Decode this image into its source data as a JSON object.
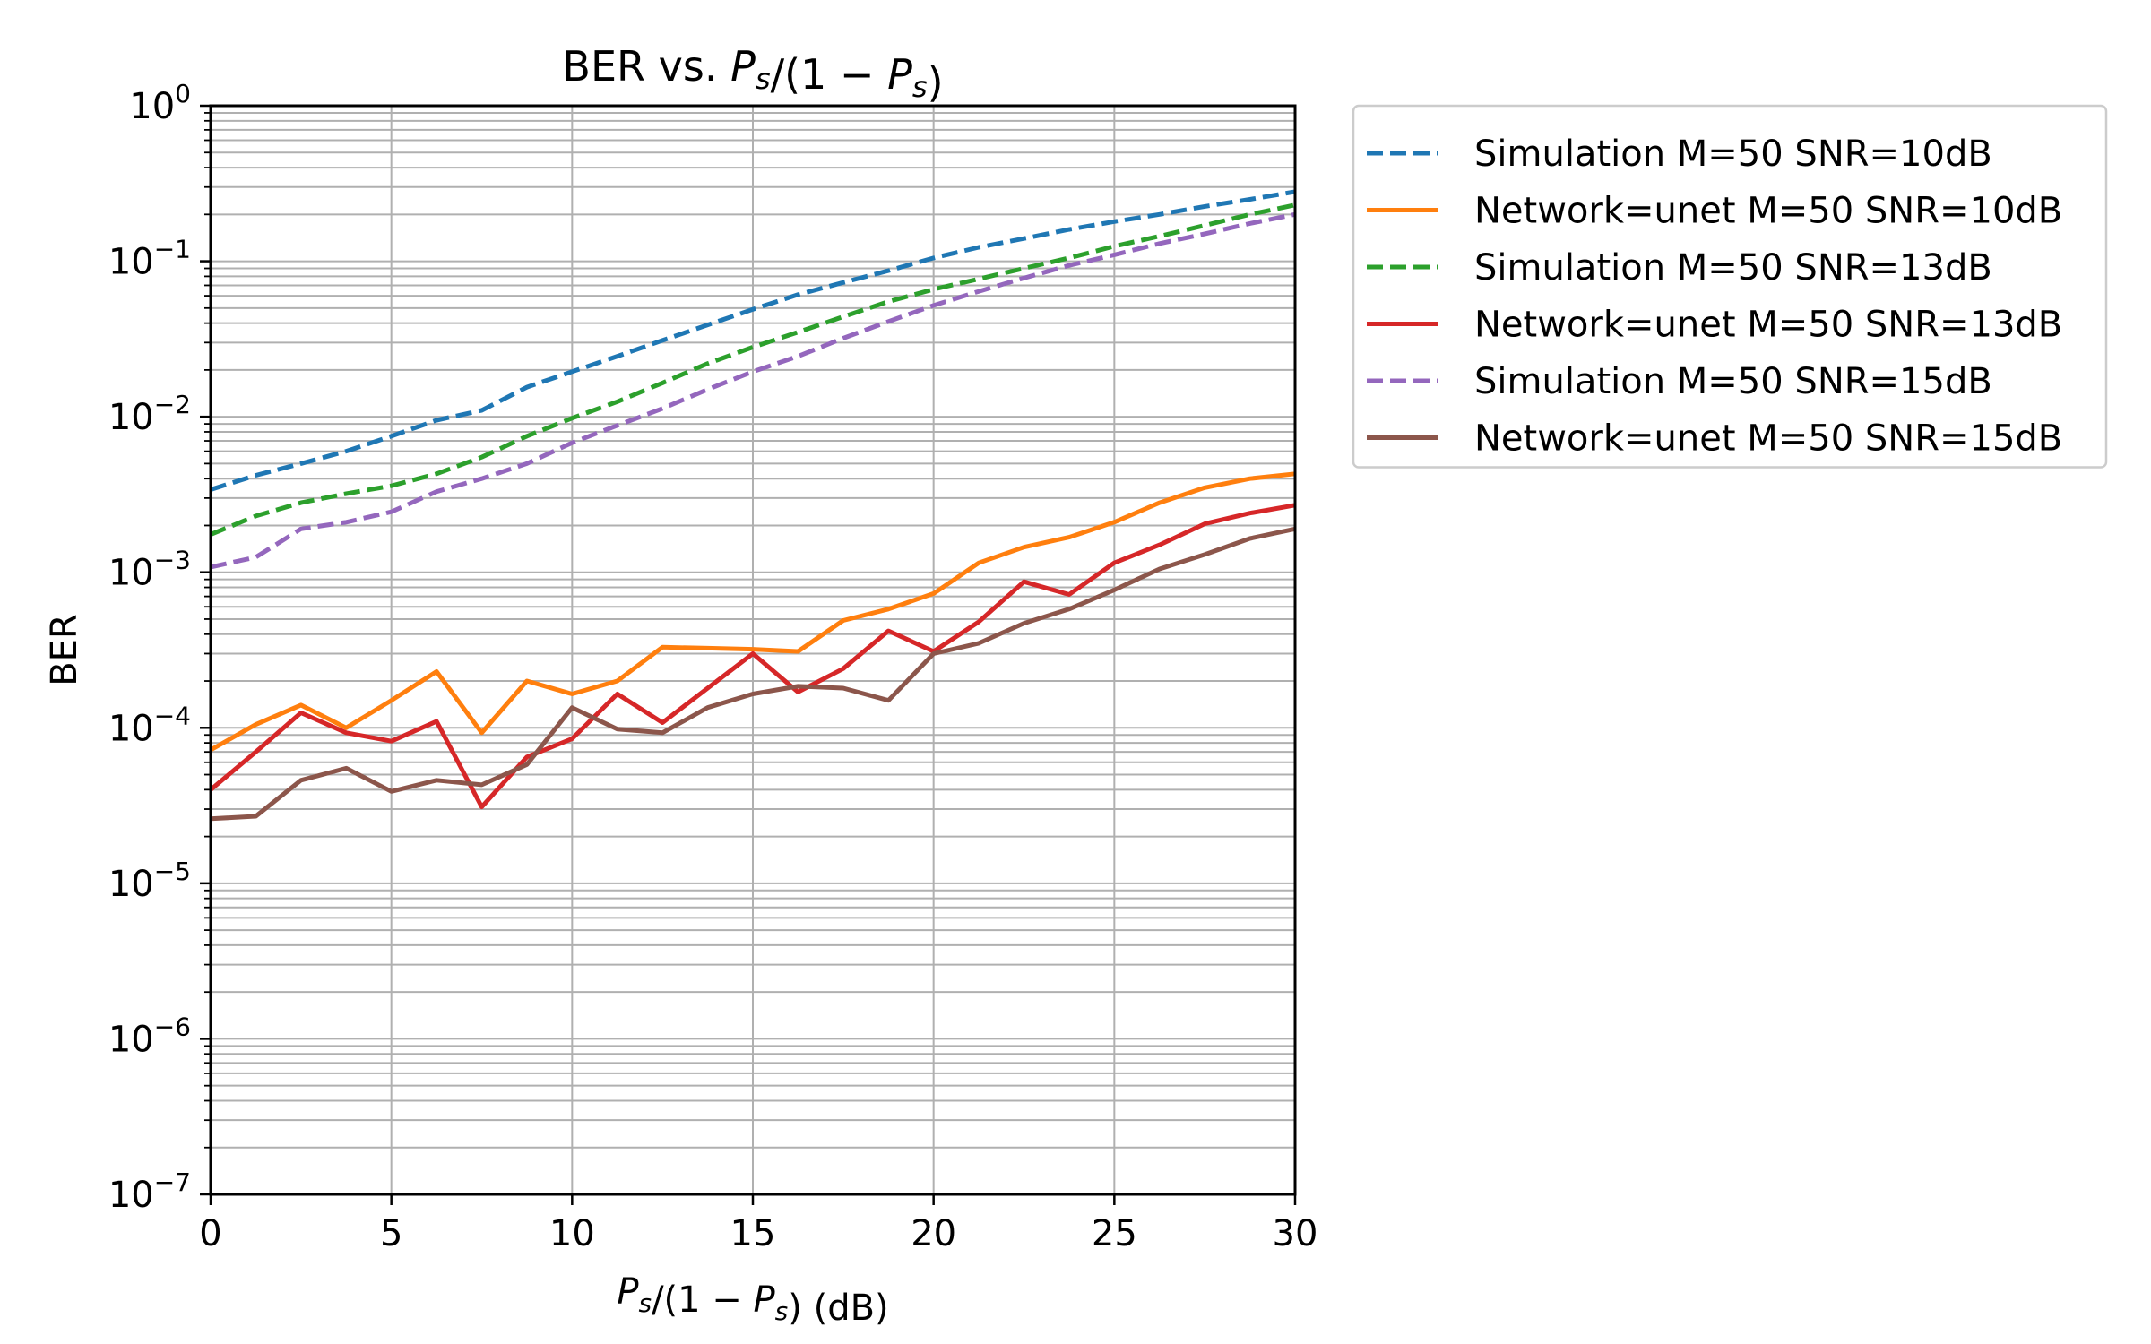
{
  "chart_data": {
    "type": "line",
    "title": "BER vs. P_s/(1 − P_s)",
    "title_parts": {
      "prefix": "BER vs. ",
      "formula": "P_s/(1 − P_s)"
    },
    "xlabel": "P_s/(1 − P_s) (dB)",
    "xlabel_parts": {
      "formula": "P_s/(1 − P_s)",
      "unit": "(dB)"
    },
    "ylabel": "BER",
    "xlim": [
      0,
      30
    ],
    "ylim": [
      1e-07,
      1
    ],
    "yscale": "log",
    "grid": true,
    "grid_minor_y": true,
    "legend_position": "outside-right",
    "x_ticks": [
      0,
      5,
      10,
      15,
      20,
      25,
      30
    ],
    "x_tick_labels": [
      "0",
      "5",
      "10",
      "15",
      "20",
      "25",
      "30"
    ],
    "y_ticks": [
      1e-07,
      1e-06,
      1e-05,
      0.0001,
      0.001,
      0.01,
      0.1,
      1
    ],
    "y_tick_labels": [
      {
        "base": "10",
        "exp": "−7"
      },
      {
        "base": "10",
        "exp": "−6"
      },
      {
        "base": "10",
        "exp": "−5"
      },
      {
        "base": "10",
        "exp": "−4"
      },
      {
        "base": "10",
        "exp": "−3"
      },
      {
        "base": "10",
        "exp": "−2"
      },
      {
        "base": "10",
        "exp": "−1"
      },
      {
        "base": "10",
        "exp": "0"
      }
    ],
    "x": [
      0,
      1.25,
      2.5,
      3.75,
      5,
      6.25,
      7.5,
      8.75,
      10,
      11.25,
      12.5,
      13.75,
      15,
      16.25,
      17.5,
      18.75,
      20,
      21.25,
      22.5,
      23.75,
      25,
      26.25,
      27.5,
      28.75,
      30
    ],
    "series": [
      {
        "name": "Simulation M=50 SNR=10dB",
        "color": "#1f77b4",
        "dashed": true,
        "values": [
          0.0034,
          0.0042,
          0.005,
          0.006,
          0.0075,
          0.0095,
          0.011,
          0.0155,
          0.0195,
          0.0245,
          0.031,
          0.039,
          0.049,
          0.061,
          0.073,
          0.087,
          0.105,
          0.123,
          0.14,
          0.16,
          0.18,
          0.2,
          0.225,
          0.25,
          0.28
        ]
      },
      {
        "name": "Network=unet M=50 SNR=10dB",
        "color": "#ff7f0e",
        "dashed": false,
        "values": [
          7.2e-05,
          0.000105,
          0.00014,
          0.0001,
          0.00015,
          0.00023,
          9.3e-05,
          0.0002,
          0.000165,
          0.0002,
          0.00033,
          0.000325,
          0.00032,
          0.00031,
          0.00049,
          0.00058,
          0.00073,
          0.00115,
          0.00145,
          0.00168,
          0.0021,
          0.0028,
          0.0035,
          0.004,
          0.0043
        ]
      },
      {
        "name": "Simulation M=50 SNR=13dB",
        "color": "#2ca02c",
        "dashed": true,
        "values": [
          0.00175,
          0.0023,
          0.0028,
          0.0032,
          0.0036,
          0.0043,
          0.0055,
          0.0075,
          0.0098,
          0.0125,
          0.0165,
          0.022,
          0.028,
          0.035,
          0.044,
          0.055,
          0.066,
          0.077,
          0.09,
          0.105,
          0.125,
          0.145,
          0.17,
          0.2,
          0.23
        ]
      },
      {
        "name": "Network=unet M=50 SNR=13dB",
        "color": "#d62728",
        "dashed": false,
        "values": [
          4e-05,
          7e-05,
          0.000125,
          9.3e-05,
          8.2e-05,
          0.00011,
          3.1e-05,
          6.5e-05,
          8.5e-05,
          0.000165,
          0.000108,
          0.00018,
          0.0003,
          0.00017,
          0.00024,
          0.00042,
          0.00031,
          0.00048,
          0.00087,
          0.00072,
          0.00115,
          0.0015,
          0.00205,
          0.0024,
          0.0027
        ]
      },
      {
        "name": "Simulation M=50 SNR=15dB",
        "color": "#9467bd",
        "dashed": true,
        "values": [
          0.00108,
          0.00125,
          0.0019,
          0.0021,
          0.00245,
          0.0033,
          0.004,
          0.005,
          0.0068,
          0.0088,
          0.0113,
          0.015,
          0.0195,
          0.0245,
          0.032,
          0.041,
          0.052,
          0.064,
          0.078,
          0.094,
          0.11,
          0.13,
          0.15,
          0.175,
          0.2
        ]
      },
      {
        "name": "Network=unet M=50 SNR=15dB",
        "color": "#8c564b",
        "dashed": false,
        "values": [
          2.6e-05,
          2.7e-05,
          4.6e-05,
          5.5e-05,
          3.9e-05,
          4.6e-05,
          4.3e-05,
          5.8e-05,
          0.000135,
          9.8e-05,
          9.3e-05,
          0.000135,
          0.000165,
          0.000185,
          0.00018,
          0.00015,
          0.0003,
          0.00035,
          0.00047,
          0.00058,
          0.00077,
          0.00105,
          0.0013,
          0.00165,
          0.0019
        ]
      }
    ]
  }
}
